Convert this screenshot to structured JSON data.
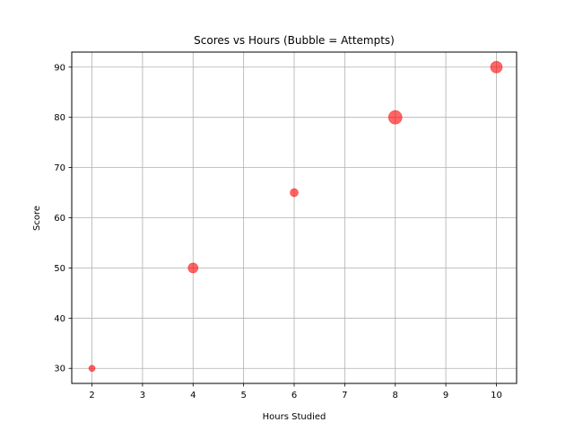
{
  "chart_data": {
    "type": "scatter",
    "title": "Scores vs Hours (Bubble = Attempts)",
    "xlabel": "Hours Studied",
    "ylabel": "Score",
    "xlim": [
      1.6,
      10.4
    ],
    "ylim": [
      27,
      93
    ],
    "xticks": [
      2,
      3,
      4,
      5,
      6,
      7,
      8,
      9,
      10
    ],
    "yticks": [
      30,
      40,
      50,
      60,
      70,
      80,
      90
    ],
    "grid": true,
    "legend": "none",
    "series": [
      {
        "color": "#ff0000",
        "opacity": 0.6,
        "points": [
          {
            "x": 2,
            "y": 30,
            "size": 1
          },
          {
            "x": 4,
            "y": 50,
            "size": 3
          },
          {
            "x": 6,
            "y": 65,
            "size": 2
          },
          {
            "x": 8,
            "y": 80,
            "size": 5
          },
          {
            "x": 10,
            "y": 90,
            "size": 4
          }
        ]
      }
    ]
  }
}
